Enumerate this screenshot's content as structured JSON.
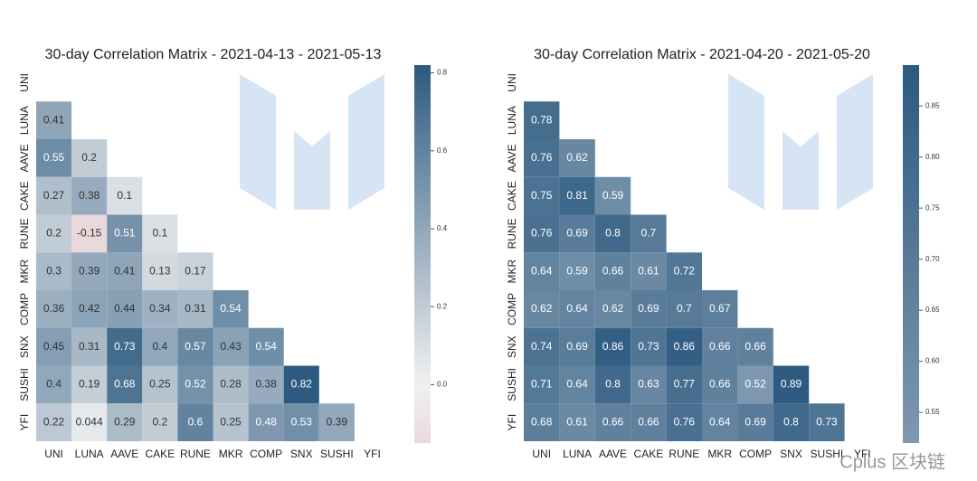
{
  "chart_data": [
    {
      "type": "heatmap",
      "title": "30-day Correlation Matrix - 2021-04-13 - 2021-05-13",
      "rows": [
        "UNI",
        "LUNA",
        "AAVE",
        "CAKE",
        "RUNE",
        "MKR",
        "COMP",
        "SNX",
        "SUSHI",
        "YFI"
      ],
      "columns": [
        "UNI",
        "LUNA",
        "AAVE",
        "CAKE",
        "RUNE",
        "MKR",
        "COMP",
        "SNX",
        "SUSHI",
        "YFI"
      ],
      "values": [
        [],
        [
          0.41
        ],
        [
          0.55,
          0.2
        ],
        [
          0.27,
          0.38,
          0.1
        ],
        [
          0.2,
          -0.15,
          0.51,
          0.1
        ],
        [
          0.3,
          0.39,
          0.41,
          0.13,
          0.17
        ],
        [
          0.36,
          0.42,
          0.44,
          0.34,
          0.31,
          0.54
        ],
        [
          0.45,
          0.31,
          0.73,
          0.4,
          0.57,
          0.43,
          0.54
        ],
        [
          0.4,
          0.19,
          0.68,
          0.25,
          0.52,
          0.28,
          0.38,
          0.82
        ],
        [
          0.22,
          0.044,
          0.29,
          0.2,
          0.6,
          0.25,
          0.48,
          0.53,
          0.39
        ]
      ],
      "clim": [
        -0.15,
        0.82
      ],
      "center": 0,
      "cticks": [
        {
          "value": 0,
          "label": "0.0"
        },
        0.2,
        0.4,
        0.6,
        0.8
      ],
      "colormap": [
        "#c96c78",
        "#f1f1f1",
        "#2c5a80"
      ]
    },
    {
      "type": "heatmap",
      "title": "30-day Correlation Matrix - 2021-04-20 - 2021-05-20",
      "rows": [
        "UNI",
        "LUNA",
        "AAVE",
        "CAKE",
        "RUNE",
        "MKR",
        "COMP",
        "SNX",
        "SUSHI",
        "YFI"
      ],
      "columns": [
        "UNI",
        "LUNA",
        "AAVE",
        "CAKE",
        "RUNE",
        "MKR",
        "COMP",
        "SNX",
        "SUSHI",
        "YFI"
      ],
      "values": [
        [],
        [
          0.78
        ],
        [
          0.76,
          0.62
        ],
        [
          0.75,
          0.81,
          0.59
        ],
        [
          0.76,
          0.69,
          0.8,
          0.7
        ],
        [
          0.64,
          0.59,
          0.66,
          0.61,
          0.72
        ],
        [
          0.62,
          0.64,
          0.62,
          0.69,
          0.7,
          0.67
        ],
        [
          0.74,
          0.69,
          0.86,
          0.73,
          0.86,
          0.66,
          0.66
        ],
        [
          0.71,
          0.64,
          0.8,
          0.63,
          0.77,
          0.66,
          0.52,
          0.89
        ],
        [
          0.68,
          0.61,
          0.66,
          0.66,
          0.76,
          0.64,
          0.69,
          0.8,
          0.73
        ]
      ],
      "clim": [
        0.52,
        0.89
      ],
      "center": 0,
      "cticks": [
        0.55,
        {
          "value": 0.6,
          "label": "0.60"
        },
        0.65,
        {
          "value": 0.7,
          "label": "0.70"
        },
        0.75,
        {
          "value": 0.8,
          "label": "0.80"
        },
        0.85
      ],
      "colormap": [
        "#c96c78",
        "#f1f1f1",
        "#2c5a80"
      ]
    }
  ],
  "watermark": "Cplus 区块链"
}
